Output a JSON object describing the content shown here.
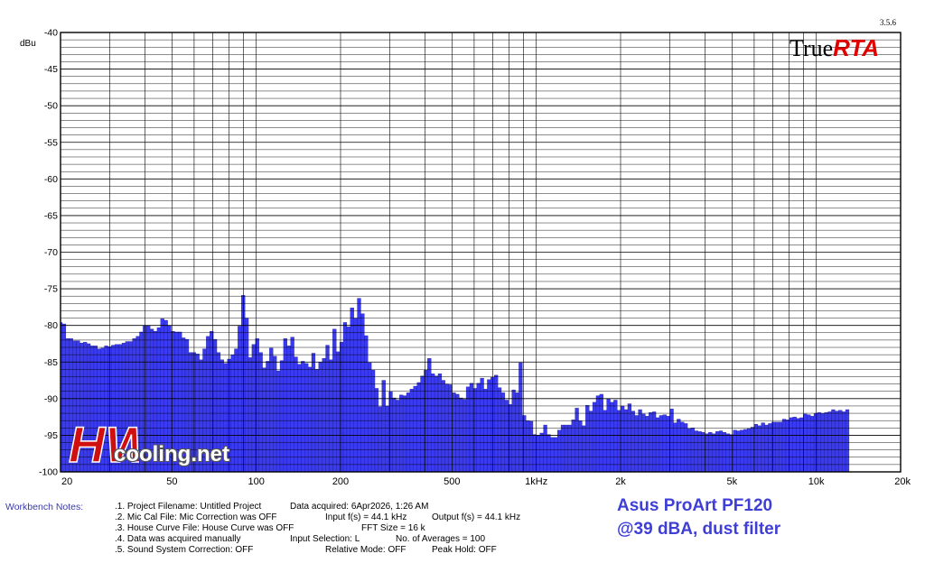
{
  "version": "3.5.6",
  "logo": {
    "part1": "True",
    "part2": "RTA"
  },
  "watermark": {
    "mark": "HW",
    "text": "cooling.net"
  },
  "workbench": {
    "label": "Workbench Notes:",
    "lines": [
      {
        "a": ".1. Project Filename: Untitled Project",
        "b": "Data acquired: 6Apr2026, 1:26 AM",
        "c": ""
      },
      {
        "a": ".2. Mic Cal File: Mic Correction was OFF",
        "b": "Input f(s) = 44.1 kHz",
        "c": "Output f(s) = 44.1 kHz"
      },
      {
        "a": ".3. House Curve File: House Curve was OFF",
        "b": "FFT Size = 16 k",
        "c": ""
      },
      {
        "a": ".4. Data was acquired manually",
        "b": "Input Selection: L",
        "c": "No. of Averages = 100"
      },
      {
        "a": ".5. Sound System Correction: OFF",
        "b": "Relative Mode:  OFF",
        "c": "Peak Hold: OFF"
      }
    ],
    "title_line1": "Asus ProArt PF120",
    "title_line2": "@39 dBA, dust filter"
  },
  "colors": {
    "bar": "#3a3af0",
    "bar_edge": "#1a1a8a",
    "grid": "#000000",
    "title": "#3f3fd8"
  },
  "chart_data": {
    "type": "bar",
    "title": "",
    "xlabel": "",
    "ylabel": "dBu",
    "x_scale": "log",
    "xlim": [
      20,
      20000
    ],
    "ylim": [
      -100,
      -40
    ],
    "y_ticks": [
      -40,
      -45,
      -50,
      -55,
      -60,
      -65,
      -70,
      -75,
      -80,
      -85,
      -90,
      -95,
      -100
    ],
    "y_tick_labels": [
      "-40",
      "-45",
      "-50",
      "-55",
      "-60",
      "-65",
      "-70",
      "-75",
      "-80",
      "-85",
      "-90",
      "-95",
      "-100"
    ],
    "x_ticks": [
      20,
      50,
      100,
      200,
      500,
      1000,
      2000,
      5000,
      10000,
      20000
    ],
    "x_tick_labels": [
      "20",
      "50",
      "100",
      "200",
      "500",
      "1kHz",
      "2k",
      "5k",
      "10k",
      "20k"
    ],
    "grid": true,
    "points_per_octave": 24,
    "start_freq": 20,
    "values": [
      -79.6,
      -79.8,
      -81.8,
      -81.8,
      -82.1,
      -82.1,
      -82.4,
      -82.3,
      -82.5,
      -82.8,
      -82.8,
      -83.2,
      -83.1,
      -82.8,
      -82.9,
      -82.7,
      -82.6,
      -82.6,
      -82.4,
      -82.2,
      -82.2,
      -81.8,
      -81.5,
      -80.9,
      -80.0,
      -80.0,
      -80.5,
      -80.8,
      -80.3,
      -79.1,
      -79.3,
      -80.0,
      -80.8,
      -80.9,
      -80.9,
      -81.7,
      -81.9,
      -83.7,
      -83.7,
      -83.9,
      -84.7,
      -83.2,
      -81.5,
      -80.8,
      -81.9,
      -83.7,
      -84.7,
      -85.2,
      -84.6,
      -84.0,
      -83.2,
      -80.1,
      -75.9,
      -79.0,
      -84.4,
      -82.6,
      -81.8,
      -83.7,
      -85.8,
      -84.9,
      -83.1,
      -84.2,
      -86.2,
      -84.8,
      -81.8,
      -82.8,
      -81.6,
      -84.3,
      -85.3,
      -84.9,
      -85.2,
      -85.7,
      -83.8,
      -86.0,
      -85.0,
      -84.5,
      -82.7,
      -84.7,
      -80.5,
      -83.6,
      -82.3,
      -79.6,
      -80.2,
      -77.6,
      -79.0,
      -76.3,
      -78.4,
      -81.4,
      -85.1,
      -86.1,
      -88.6,
      -91.1,
      -87.5,
      -91.0,
      -89.0,
      -89.9,
      -90.2,
      -89.5,
      -89.6,
      -89.2,
      -88.7,
      -88.3,
      -87.8,
      -86.9,
      -86.1,
      -84.5,
      -86.6,
      -86.9,
      -86.6,
      -87.5,
      -88.0,
      -88.1,
      -89.2,
      -89.4,
      -89.9,
      -90.1,
      -88.4,
      -87.9,
      -88.6,
      -87.9,
      -87.2,
      -88.7,
      -87.4,
      -87.1,
      -86.8,
      -88.5,
      -89.2,
      -90.2,
      -90.8,
      -88.8,
      -89.2,
      -85.1,
      -92.3,
      -93.0,
      -93.1,
      -94.9,
      -95.0,
      -94.7,
      -93.6,
      -94.9,
      -95.3,
      -95.3,
      -94.3,
      -93.6,
      -93.6,
      -93.6,
      -92.9,
      -91.3,
      -93.0,
      -93.7,
      -90.9,
      -91.7,
      -90.5,
      -89.6,
      -89.4,
      -91.6,
      -90.0,
      -90.5,
      -90.2,
      -91.6,
      -91.0,
      -91.5,
      -90.7,
      -91.7,
      -92.3,
      -91.5,
      -92.1,
      -92.4,
      -91.9,
      -91.8,
      -92.6,
      -92.3,
      -92.2,
      -92.4,
      -91.4,
      -93.3,
      -92.8,
      -93.2,
      -93.4,
      -94.1,
      -94.0,
      -94.4,
      -94.5,
      -94.6,
      -94.8,
      -94.6,
      -94.8,
      -94.5,
      -94.4,
      -94.6,
      -94.8,
      -94.9,
      -94.3,
      -94.4,
      -94.3,
      -94.2,
      -94.1,
      -93.9,
      -93.5,
      -93.7,
      -93.3,
      -93.6,
      -93.4,
      -93.2,
      -93.2,
      -93.2,
      -92.8,
      -92.9,
      -92.6,
      -92.5,
      -92.7,
      -92.6,
      -92.1,
      -92.2,
      -92.4,
      -92.0,
      -91.9,
      -92.0,
      -91.9,
      -91.8,
      -91.5,
      -91.7,
      -91.6,
      -91.8,
      -91.5
    ]
  }
}
